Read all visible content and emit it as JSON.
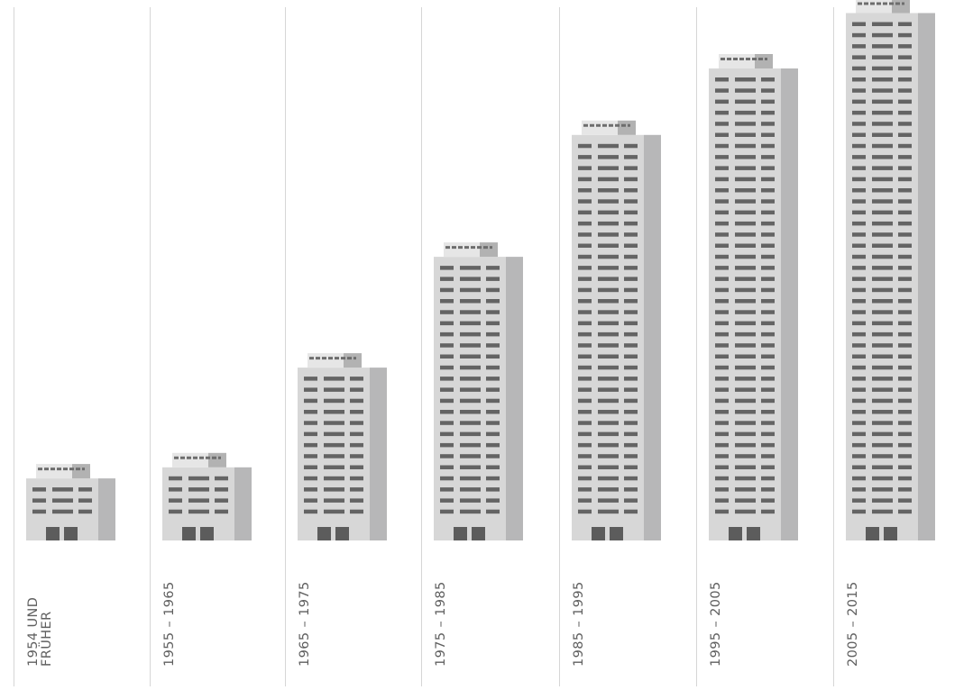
{
  "chart_data": {
    "type": "bar",
    "categories": [
      "1954 UND FRÜHER",
      "1955 – 1965",
      "1965 – 1975",
      "1975 – 1985",
      "1985 – 1995",
      "1995 – 2005",
      "2005 – 2015"
    ],
    "category_lines": [
      [
        "1954 UND",
        "FRÜHER"
      ],
      [
        "1955 – 1965"
      ],
      [
        "1965 – 1975"
      ],
      [
        "1975 – 1985"
      ],
      [
        "1985 – 1995"
      ],
      [
        "1995 – 2005"
      ],
      [
        "2005 – 2015"
      ]
    ],
    "series": [
      {
        "values": [
          3,
          4,
          13,
          23,
          34,
          40,
          45
        ]
      }
    ],
    "ylim": [
      0,
      45
    ],
    "grid": false,
    "colors": {
      "facade": "#d7d7d7",
      "side": "#b7b7b8",
      "windows": "#646464",
      "doors": "#5c5c5c",
      "roof_light": "#e6e6e6",
      "roof_dark": "#b2b2b2",
      "roof_stripe": "#6d6d6d",
      "separator": "#d6d6d6",
      "label": "#5f5f5f"
    }
  }
}
